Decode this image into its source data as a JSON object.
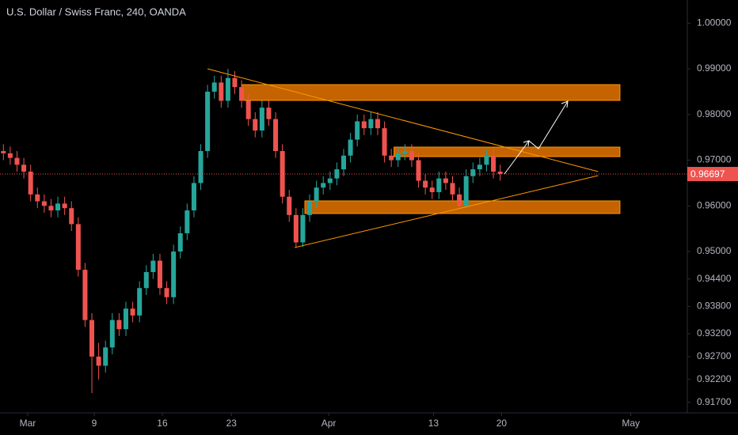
{
  "chart_data": {
    "type": "candlestick",
    "title": "U.S. Dollar / Swiss Franc, 240, OANDA",
    "up_color": "#26a69a",
    "down_color": "#ef5350",
    "open": [
      0.972,
      0.9715,
      0.9705,
      0.969,
      0.9675,
      0.9625,
      0.961,
      0.96,
      0.959,
      0.9605,
      0.9595,
      0.956,
      0.946,
      0.935,
      0.927,
      0.925,
      0.929,
      0.935,
      0.933,
      0.9375,
      0.936,
      0.942,
      0.9455,
      0.948,
      0.942,
      0.94,
      0.95,
      0.954,
      0.959,
      0.965,
      0.972,
      0.985,
      0.987,
      0.983,
      0.988,
      0.986,
      0.983,
      0.979,
      0.9765,
      0.9815,
      0.979,
      0.972,
      0.962,
      0.958,
      0.952,
      0.958,
      0.961,
      0.964,
      0.965,
      0.966,
      0.968,
      0.971,
      0.9745,
      0.9785,
      0.977,
      0.979,
      0.977,
      0.971,
      0.97,
      0.9715,
      0.972,
      0.97,
      0.9655,
      0.964,
      0.963,
      0.966,
      0.965,
      0.9625,
      0.96,
      0.9665,
      0.968,
      0.969,
      0.971,
      0.9675
    ],
    "high": [
      0.9735,
      0.973,
      0.972,
      0.9705,
      0.969,
      0.964,
      0.9625,
      0.9615,
      0.962,
      0.962,
      0.961,
      0.9575,
      0.9475,
      0.9365,
      0.93,
      0.9305,
      0.9365,
      0.9365,
      0.939,
      0.939,
      0.9435,
      0.947,
      0.9495,
      0.9495,
      0.9435,
      0.9515,
      0.9555,
      0.9605,
      0.9665,
      0.9735,
      0.9865,
      0.9885,
      0.9885,
      0.99,
      0.9895,
      0.9875,
      0.9845,
      0.9805,
      0.983,
      0.983,
      0.9805,
      0.9735,
      0.9635,
      0.9595,
      0.9595,
      0.9625,
      0.9655,
      0.9665,
      0.9675,
      0.9695,
      0.9725,
      0.976,
      0.98,
      0.98,
      0.9805,
      0.9805,
      0.9785,
      0.9725,
      0.973,
      0.9735,
      0.9735,
      0.9715,
      0.967,
      0.9655,
      0.9675,
      0.9675,
      0.9665,
      0.964,
      0.968,
      0.9695,
      0.9705,
      0.9722,
      0.9725,
      0.969
    ],
    "low": [
      0.97,
      0.969,
      0.9675,
      0.966,
      0.961,
      0.9595,
      0.9585,
      0.9575,
      0.9575,
      0.958,
      0.9545,
      0.9445,
      0.9335,
      0.919,
      0.922,
      0.9235,
      0.9275,
      0.9315,
      0.9315,
      0.9345,
      0.9345,
      0.9405,
      0.944,
      0.9405,
      0.9385,
      0.9385,
      0.9485,
      0.9525,
      0.9575,
      0.9635,
      0.9705,
      0.9835,
      0.9815,
      0.9815,
      0.9845,
      0.9815,
      0.9775,
      0.975,
      0.975,
      0.9775,
      0.9705,
      0.9605,
      0.9565,
      0.951,
      0.951,
      0.9565,
      0.9595,
      0.9625,
      0.9635,
      0.9645,
      0.9665,
      0.9695,
      0.973,
      0.9755,
      0.9755,
      0.9755,
      0.9695,
      0.9685,
      0.9685,
      0.97,
      0.9685,
      0.964,
      0.9625,
      0.9615,
      0.9615,
      0.9635,
      0.961,
      0.9595,
      0.9595,
      0.965,
      0.9665,
      0.9675,
      0.966,
      0.9655
    ],
    "close": [
      0.9715,
      0.9705,
      0.969,
      0.9675,
      0.9625,
      0.961,
      0.96,
      0.959,
      0.9605,
      0.9595,
      0.956,
      0.946,
      0.935,
      0.927,
      0.925,
      0.929,
      0.935,
      0.933,
      0.9375,
      0.936,
      0.942,
      0.9455,
      0.948,
      0.942,
      0.94,
      0.95,
      0.954,
      0.959,
      0.965,
      0.972,
      0.985,
      0.987,
      0.983,
      0.988,
      0.986,
      0.983,
      0.979,
      0.9765,
      0.9815,
      0.979,
      0.972,
      0.962,
      0.958,
      0.952,
      0.958,
      0.961,
      0.964,
      0.965,
      0.966,
      0.968,
      0.971,
      0.9745,
      0.9785,
      0.977,
      0.979,
      0.977,
      0.971,
      0.97,
      0.9715,
      0.972,
      0.97,
      0.9655,
      0.964,
      0.963,
      0.966,
      0.965,
      0.9625,
      0.96,
      0.9665,
      0.968,
      0.969,
      0.971,
      0.9675,
      0.967
    ],
    "xlim": [
      -0.5,
      100.5
    ],
    "xticks": [
      {
        "value": 3.57,
        "label": "Mar"
      },
      {
        "value": 13.35,
        "label": "9"
      },
      {
        "value": 23.35,
        "label": "16"
      },
      {
        "value": 33.5,
        "label": "23"
      },
      {
        "value": 47.8,
        "label": "Apr"
      },
      {
        "value": 63.2,
        "label": "13"
      },
      {
        "value": 73.2,
        "label": "20"
      },
      {
        "value": 92.2,
        "label": "May"
      }
    ],
    "ylim": [
      0.91468,
      1.00507
    ],
    "yticks": [
      {
        "value": 1.0,
        "label": "1.00000"
      },
      {
        "value": 0.99,
        "label": "0.99000"
      },
      {
        "value": 0.98,
        "label": "0.98000"
      },
      {
        "value": 0.97,
        "label": "0.97000"
      },
      {
        "value": 0.96,
        "label": "0.96000"
      },
      {
        "value": 0.95,
        "label": "0.95000"
      },
      {
        "value": 0.944,
        "label": "0.94400"
      },
      {
        "value": 0.938,
        "label": "0.93800"
      },
      {
        "value": 0.932,
        "label": "0.93200"
      },
      {
        "value": 0.927,
        "label": "0.92700"
      },
      {
        "value": 0.922,
        "label": "0.92200"
      },
      {
        "value": 0.917,
        "label": "0.91700"
      }
    ],
    "last_price": 0.96697,
    "zone_color": "#f57c00",
    "zones": [
      {
        "x": [
          35.0,
          90.6
        ],
        "y": [
          0.98308,
          0.98654
        ]
      },
      {
        "x": [
          57.4,
          90.6
        ],
        "y": [
          0.97078,
          0.97286
        ]
      },
      {
        "x": [
          44.3,
          90.6
        ],
        "y": [
          0.95832,
          0.96109
        ]
      }
    ],
    "trendline_color": "#ff9800",
    "trendlines": [
      {
        "x": [
          30.0,
          87.4
        ],
        "y": [
          0.99,
          0.96749
        ]
      },
      {
        "x": [
          42.8,
          87.4
        ],
        "y": [
          0.95087,
          0.96663
        ]
      }
    ]
  }
}
